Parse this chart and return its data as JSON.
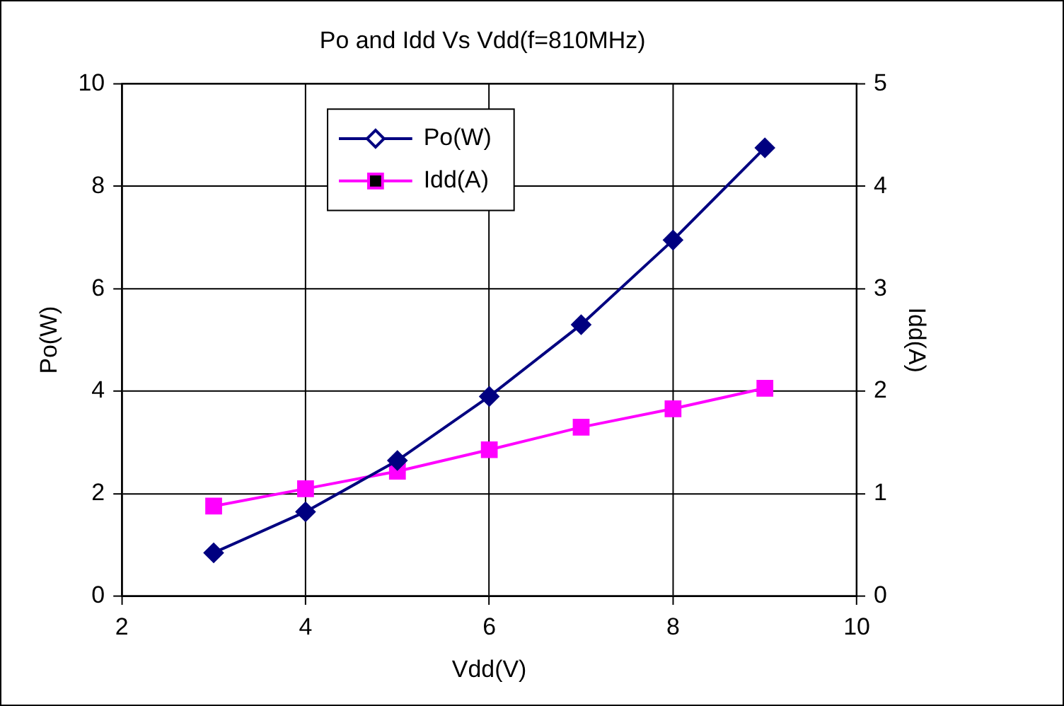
{
  "chart_data": {
    "type": "line",
    "title": "Po and Idd Vs Vdd(f=810MHz)",
    "xlabel": "Vdd(V)",
    "ylabel": "Po(W)",
    "y2label": "Idd(A)",
    "x": [
      3,
      4,
      5,
      6,
      7,
      8,
      9
    ],
    "series": [
      {
        "name": "Po(W)",
        "color": "#000080",
        "marker": "diamond",
        "values": [
          0.85,
          1.65,
          2.65,
          3.9,
          5.3,
          6.95,
          8.75
        ]
      },
      {
        "name": "Idd(A)",
        "color": "#ff00ff",
        "marker": "square",
        "axis": "y2",
        "values": [
          0.88,
          1.05,
          1.22,
          1.43,
          1.65,
          1.83,
          2.03
        ]
      }
    ],
    "xlim": [
      2,
      10
    ],
    "xticks": [
      2,
      4,
      6,
      8,
      10
    ],
    "ylim": [
      0,
      10
    ],
    "yticks": [
      0,
      2,
      4,
      6,
      8,
      10
    ],
    "y2lim": [
      0,
      5
    ],
    "y2ticks": [
      0,
      1,
      2,
      3,
      4,
      5
    ],
    "grid": true,
    "legend": "top",
    "line_style": "solid"
  }
}
